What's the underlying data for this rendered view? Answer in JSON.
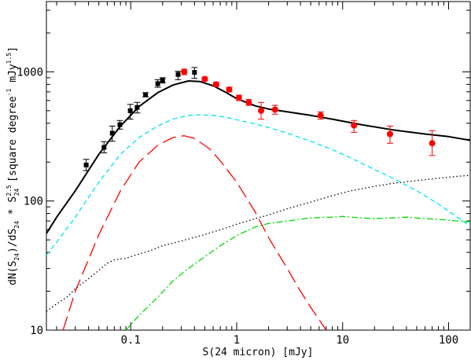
{
  "chart_data": {
    "type": "scatter",
    "title": "",
    "xlabel": "S(24 micron) [mJy]",
    "ylabel": "dN(S24)/dS24 * S24^2.5 [square degree^-1 mJy^1.5]",
    "ylabel_parts": {
      "a": "dN(S",
      "a_sub": "24",
      "b": ")/dS",
      "b_sub": "24",
      "c": " * S",
      "c_sup": "2.5",
      "c_sub": "24",
      "d": " [square degree",
      "d_sup": "-1",
      "e": " mJy",
      "e_sup": "1.5",
      "f": "]"
    },
    "xscale": "log",
    "yscale": "log",
    "xlim": [
      0.016,
      160
    ],
    "ylim": [
      10,
      3500
    ],
    "xticks": [
      {
        "value": 0.1,
        "label": "0.1"
      },
      {
        "value": 1,
        "label": "1"
      },
      {
        "value": 10,
        "label": "10"
      },
      {
        "value": 100,
        "label": "100"
      }
    ],
    "yticks": [
      {
        "value": 10,
        "label": "10"
      },
      {
        "value": 100,
        "label": "100"
      },
      {
        "value": 1000,
        "label": "1000"
      }
    ],
    "grid": false,
    "legend": "none",
    "series": [
      {
        "kind": "points",
        "marker": "square",
        "color": "#000000",
        "points": [
          {
            "x": 0.038,
            "y": 190,
            "lo": 172,
            "hi": 210
          },
          {
            "x": 0.056,
            "y": 260,
            "lo": 236,
            "hi": 288
          },
          {
            "x": 0.067,
            "y": 335,
            "lo": 290,
            "hi": 380
          },
          {
            "x": 0.079,
            "y": 390,
            "lo": 360,
            "hi": 420
          },
          {
            "x": 0.099,
            "y": 500,
            "lo": 430,
            "hi": 560
          },
          {
            "x": 0.115,
            "y": 530,
            "lo": 480,
            "hi": 580
          },
          {
            "x": 0.138,
            "y": 665,
            "lo": 640,
            "hi": 690
          },
          {
            "x": 0.18,
            "y": 810,
            "lo": 760,
            "hi": 870
          },
          {
            "x": 0.2,
            "y": 860,
            "lo": 820,
            "hi": 900
          },
          {
            "x": 0.28,
            "y": 955,
            "lo": 870,
            "hi": 1010
          },
          {
            "x": 0.4,
            "y": 990,
            "lo": 890,
            "hi": 1080
          }
        ]
      },
      {
        "kind": "points",
        "marker": "circle",
        "color": "#ff0000",
        "points": [
          {
            "x": 0.32,
            "y": 1000,
            "lo": 950,
            "hi": 1050
          },
          {
            "x": 0.5,
            "y": 880,
            "lo": 850,
            "hi": 910
          },
          {
            "x": 0.64,
            "y": 800,
            "lo": 770,
            "hi": 830
          },
          {
            "x": 0.85,
            "y": 730,
            "lo": 700,
            "hi": 760
          },
          {
            "x": 1.05,
            "y": 630,
            "lo": 600,
            "hi": 660
          },
          {
            "x": 1.3,
            "y": 580,
            "lo": 550,
            "hi": 610
          },
          {
            "x": 1.7,
            "y": 500,
            "lo": 430,
            "hi": 580
          },
          {
            "x": 2.3,
            "y": 510,
            "lo": 470,
            "hi": 550
          },
          {
            "x": 6.2,
            "y": 460,
            "lo": 430,
            "hi": 490
          },
          {
            "x": 12.8,
            "y": 385,
            "lo": 340,
            "hi": 420
          },
          {
            "x": 28,
            "y": 330,
            "lo": 280,
            "hi": 380
          },
          {
            "x": 70,
            "y": 280,
            "lo": 225,
            "hi": 350
          }
        ]
      },
      {
        "kind": "line",
        "style": "solid",
        "color": "#000000",
        "points": [
          [
            0.016,
            56
          ],
          [
            0.02,
            75
          ],
          [
            0.03,
            120
          ],
          [
            0.05,
            230
          ],
          [
            0.08,
            380
          ],
          [
            0.12,
            540
          ],
          [
            0.18,
            690
          ],
          [
            0.25,
            790
          ],
          [
            0.35,
            850
          ],
          [
            0.45,
            840
          ],
          [
            0.6,
            780
          ],
          [
            0.8,
            690
          ],
          [
            1.0,
            620
          ],
          [
            1.5,
            545
          ],
          [
            2.0,
            515
          ],
          [
            3.0,
            490
          ],
          [
            5.0,
            460
          ],
          [
            8.0,
            430
          ],
          [
            15,
            390
          ],
          [
            30,
            355
          ],
          [
            60,
            330
          ],
          [
            100,
            315
          ],
          [
            160,
            295
          ]
        ]
      },
      {
        "kind": "line",
        "style": "dashed",
        "color": "#00e5ee",
        "points": [
          [
            0.016,
            38
          ],
          [
            0.02,
            48
          ],
          [
            0.03,
            75
          ],
          [
            0.05,
            140
          ],
          [
            0.08,
            230
          ],
          [
            0.12,
            310
          ],
          [
            0.18,
            380
          ],
          [
            0.25,
            430
          ],
          [
            0.35,
            460
          ],
          [
            0.45,
            465
          ],
          [
            0.6,
            460
          ],
          [
            0.8,
            445
          ],
          [
            1.0,
            425
          ],
          [
            1.5,
            395
          ],
          [
            2.0,
            370
          ],
          [
            3.0,
            335
          ],
          [
            5.0,
            290
          ],
          [
            8.0,
            250
          ],
          [
            12,
            215
          ],
          [
            20,
            175
          ],
          [
            30,
            150
          ],
          [
            50,
            120
          ],
          [
            80,
            95
          ],
          [
            120,
            75
          ],
          [
            160,
            64
          ]
        ]
      },
      {
        "kind": "line",
        "style": "longdash",
        "color": "#ff0000",
        "points": [
          [
            0.023,
            10
          ],
          [
            0.03,
            20
          ],
          [
            0.05,
            55
          ],
          [
            0.08,
            120
          ],
          [
            0.12,
            200
          ],
          [
            0.18,
            270
          ],
          [
            0.25,
            310
          ],
          [
            0.32,
            320
          ],
          [
            0.4,
            305
          ],
          [
            0.55,
            255
          ],
          [
            0.7,
            205
          ],
          [
            1.0,
            140
          ],
          [
            1.5,
            82
          ],
          [
            2.0,
            52
          ],
          [
            3.0,
            30
          ],
          [
            4.0,
            20
          ],
          [
            5.0,
            15
          ],
          [
            7.0,
            10
          ]
        ]
      },
      {
        "kind": "line",
        "style": "dotted",
        "color": "#000000",
        "points": [
          [
            0.016,
            14
          ],
          [
            0.02,
            16
          ],
          [
            0.025,
            18
          ],
          [
            0.03,
            21
          ],
          [
            0.04,
            25
          ],
          [
            0.05,
            29
          ],
          [
            0.06,
            33
          ],
          [
            0.07,
            35
          ],
          [
            0.09,
            36
          ],
          [
            0.11,
            38
          ],
          [
            0.15,
            41
          ],
          [
            0.2,
            45
          ],
          [
            0.3,
            49
          ],
          [
            0.5,
            55
          ],
          [
            0.8,
            62
          ],
          [
            1.0,
            66
          ],
          [
            1.5,
            73
          ],
          [
            2.0,
            78
          ],
          [
            3.0,
            87
          ],
          [
            5.0,
            98
          ],
          [
            8.0,
            110
          ],
          [
            12,
            120
          ],
          [
            20,
            130
          ],
          [
            30,
            137
          ],
          [
            50,
            144
          ],
          [
            80,
            150
          ],
          [
            120,
            155
          ],
          [
            160,
            158
          ]
        ]
      },
      {
        "kind": "line",
        "style": "dashdot",
        "color": "#00dd00",
        "points": [
          [
            0.09,
            10
          ],
          [
            0.12,
            13
          ],
          [
            0.18,
            18
          ],
          [
            0.25,
            24
          ],
          [
            0.35,
            30
          ],
          [
            0.5,
            37
          ],
          [
            0.7,
            45
          ],
          [
            1.0,
            54
          ],
          [
            1.5,
            63
          ],
          [
            2.0,
            67
          ],
          [
            3.0,
            70
          ],
          [
            5.0,
            74
          ],
          [
            8.0,
            75
          ],
          [
            10,
            76
          ],
          [
            15,
            74
          ],
          [
            20,
            73
          ],
          [
            30,
            74
          ],
          [
            40,
            75
          ],
          [
            60,
            73
          ],
          [
            80,
            72
          ],
          [
            120,
            70
          ],
          [
            160,
            69
          ]
        ]
      }
    ]
  }
}
